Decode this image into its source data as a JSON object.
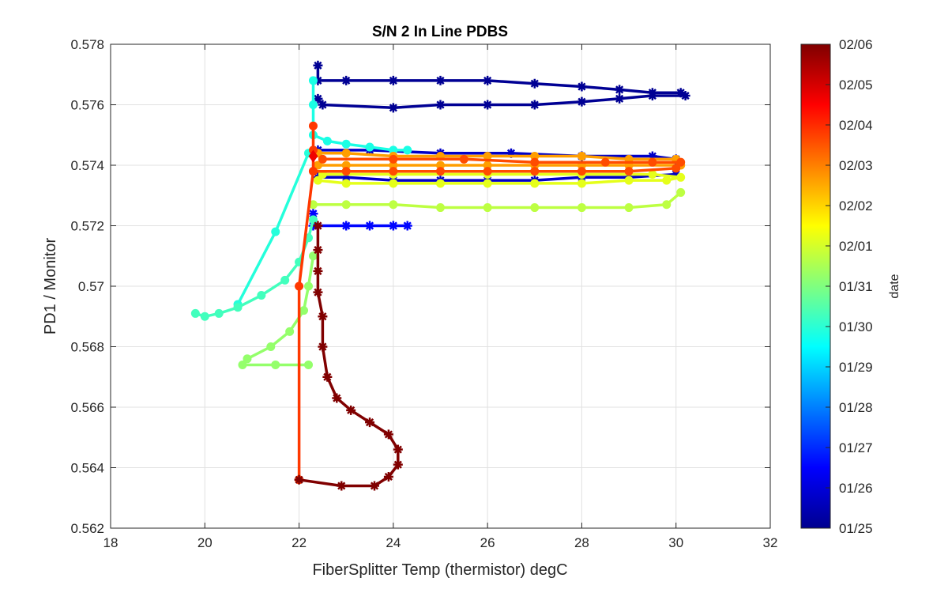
{
  "chart_data": {
    "type": "scatter",
    "title": "S/N 2 In Line PDBS",
    "xlabel": "FiberSplitter Temp (thermistor) degC",
    "ylabel": "PD1 / Monitor",
    "xlim": [
      18,
      32
    ],
    "ylim": [
      0.562,
      0.578
    ],
    "xticks": [
      "18",
      "20",
      "22",
      "24",
      "26",
      "28",
      "30",
      "32"
    ],
    "yticks": [
      "0.562",
      "0.564",
      "0.566",
      "0.568",
      "0.57",
      "0.572",
      "0.574",
      "0.576",
      "0.578"
    ],
    "grid": true,
    "colorbar": {
      "label": "date",
      "colormap": "jet",
      "ticks": [
        "01/25",
        "01/26",
        "01/27",
        "01/28",
        "01/29",
        "01/30",
        "01/31",
        "02/01",
        "02/02",
        "02/03",
        "02/04",
        "02/05",
        "02/06"
      ]
    },
    "series": [
      {
        "date_pos": 0.02,
        "marker": "star",
        "points": [
          [
            22.4,
            0.5773
          ],
          [
            22.4,
            0.5768
          ],
          [
            23.0,
            0.5768
          ],
          [
            24.0,
            0.5768
          ],
          [
            25.0,
            0.5768
          ],
          [
            26.0,
            0.5768
          ],
          [
            27.0,
            0.5767
          ],
          [
            28.0,
            0.5766
          ],
          [
            28.8,
            0.5765
          ],
          [
            29.5,
            0.5764
          ],
          [
            30.1,
            0.5764
          ],
          [
            30.2,
            0.5763
          ],
          [
            29.5,
            0.5763
          ],
          [
            28.8,
            0.5762
          ],
          [
            28.0,
            0.5761
          ],
          [
            27.0,
            0.576
          ],
          [
            26.0,
            0.576
          ],
          [
            25.0,
            0.576
          ],
          [
            24.0,
            0.5759
          ],
          [
            22.5,
            0.576
          ],
          [
            22.4,
            0.5762
          ]
        ]
      },
      {
        "date_pos": 0.07,
        "marker": "star",
        "points": [
          [
            22.4,
            0.5745
          ],
          [
            23.5,
            0.5745
          ],
          [
            25.0,
            0.5744
          ],
          [
            26.5,
            0.5744
          ],
          [
            28.0,
            0.5743
          ],
          [
            29.5,
            0.5743
          ],
          [
            30.0,
            0.5742
          ],
          [
            30.0,
            0.5737
          ],
          [
            29.0,
            0.5736
          ],
          [
            28.0,
            0.5736
          ],
          [
            27.0,
            0.5735
          ],
          [
            26.0,
            0.5735
          ],
          [
            25.0,
            0.5735
          ],
          [
            24.0,
            0.5735
          ],
          [
            23.0,
            0.5736
          ],
          [
            22.4,
            0.5736
          ]
        ]
      },
      {
        "date_pos": 0.13,
        "marker": "star",
        "points": [
          [
            22.3,
            0.5724
          ],
          [
            22.3,
            0.572
          ],
          [
            23.0,
            0.572
          ],
          [
            23.5,
            0.572
          ],
          [
            24.0,
            0.572
          ],
          [
            24.3,
            0.572
          ]
        ]
      },
      {
        "date_pos": 0.4,
        "marker": "circle",
        "points": [
          [
            22.3,
            0.5768
          ],
          [
            22.3,
            0.576
          ],
          [
            22.3,
            0.575
          ],
          [
            22.6,
            0.5748
          ],
          [
            23.0,
            0.5747
          ],
          [
            23.5,
            0.5746
          ],
          [
            24.0,
            0.5745
          ],
          [
            24.3,
            0.5745
          ]
        ]
      },
      {
        "date_pos": 0.41,
        "marker": "circle",
        "points": [
          [
            22.2,
            0.5744
          ],
          [
            21.5,
            0.5718
          ],
          [
            20.7,
            0.5694
          ]
        ]
      },
      {
        "date_pos": 0.44,
        "marker": "circle",
        "points": [
          [
            19.8,
            0.5691
          ],
          [
            20.0,
            0.569
          ],
          [
            20.3,
            0.5691
          ],
          [
            20.7,
            0.5693
          ],
          [
            21.2,
            0.5697
          ],
          [
            21.7,
            0.5702
          ],
          [
            22.0,
            0.5708
          ],
          [
            22.2,
            0.5716
          ],
          [
            22.3,
            0.5722
          ]
        ]
      },
      {
        "date_pos": 0.52,
        "marker": "circle",
        "points": [
          [
            22.2,
            0.5674
          ],
          [
            21.5,
            0.5674
          ],
          [
            20.8,
            0.5674
          ],
          [
            20.9,
            0.5676
          ],
          [
            21.4,
            0.568
          ],
          [
            21.8,
            0.5685
          ],
          [
            22.1,
            0.5692
          ],
          [
            22.2,
            0.57
          ],
          [
            22.3,
            0.571
          ]
        ]
      },
      {
        "date_pos": 0.56,
        "marker": "circle",
        "points": [
          [
            22.3,
            0.5727
          ],
          [
            23.0,
            0.5727
          ],
          [
            24.0,
            0.5727
          ],
          [
            25.0,
            0.5726
          ],
          [
            26.0,
            0.5726
          ],
          [
            27.0,
            0.5726
          ],
          [
            28.0,
            0.5726
          ],
          [
            29.0,
            0.5726
          ],
          [
            29.8,
            0.5727
          ],
          [
            30.1,
            0.5731
          ]
        ]
      },
      {
        "date_pos": 0.6,
        "marker": "circle",
        "points": [
          [
            22.4,
            0.5735
          ],
          [
            23.0,
            0.5734
          ],
          [
            24.0,
            0.5734
          ],
          [
            25.0,
            0.5734
          ],
          [
            26.0,
            0.5734
          ],
          [
            27.0,
            0.5734
          ],
          [
            28.0,
            0.5734
          ],
          [
            29.0,
            0.5735
          ],
          [
            29.8,
            0.5735
          ],
          [
            30.1,
            0.5736
          ],
          [
            29.5,
            0.5737
          ],
          [
            28.0,
            0.5737
          ],
          [
            26.0,
            0.5737
          ],
          [
            24.0,
            0.5737
          ],
          [
            22.5,
            0.5737
          ]
        ]
      },
      {
        "date_pos": 0.72,
        "marker": "circle",
        "points": [
          [
            22.4,
            0.5744
          ],
          [
            23.0,
            0.5744
          ],
          [
            24.0,
            0.5743
          ],
          [
            25.0,
            0.5743
          ],
          [
            26.0,
            0.5743
          ],
          [
            27.0,
            0.5743
          ],
          [
            28.0,
            0.5743
          ],
          [
            29.0,
            0.5742
          ],
          [
            30.0,
            0.5742
          ],
          [
            30.1,
            0.574
          ],
          [
            29.0,
            0.574
          ],
          [
            28.0,
            0.574
          ],
          [
            27.0,
            0.574
          ],
          [
            26.0,
            0.574
          ],
          [
            25.0,
            0.574
          ],
          [
            24.0,
            0.574
          ],
          [
            23.0,
            0.574
          ],
          [
            22.4,
            0.574
          ]
        ]
      },
      {
        "date_pos": 0.8,
        "marker": "circle",
        "points": [
          [
            22.3,
            0.5738
          ],
          [
            23.0,
            0.5738
          ],
          [
            24.0,
            0.5738
          ],
          [
            25.0,
            0.5738
          ],
          [
            26.0,
            0.5738
          ],
          [
            27.0,
            0.5738
          ],
          [
            28.0,
            0.5738
          ],
          [
            29.0,
            0.5738
          ],
          [
            30.0,
            0.5739
          ],
          [
            30.1,
            0.5741
          ],
          [
            29.5,
            0.5741
          ],
          [
            28.5,
            0.5741
          ],
          [
            27.0,
            0.5741
          ],
          [
            25.5,
            0.5742
          ],
          [
            24.0,
            0.5742
          ],
          [
            22.5,
            0.5742
          ]
        ]
      },
      {
        "date_pos": 0.82,
        "marker": "circle",
        "points": [
          [
            22.3,
            0.5753
          ],
          [
            22.3,
            0.5745
          ],
          [
            22.3,
            0.5738
          ],
          [
            22.0,
            0.57
          ],
          [
            22.0,
            0.5636
          ]
        ]
      },
      {
        "date_pos": 0.89,
        "marker": "diamond",
        "points": [
          [
            22.3,
            0.5743
          ]
        ]
      },
      {
        "date_pos": 1.0,
        "marker": "star",
        "points": [
          [
            22.4,
            0.572
          ],
          [
            22.4,
            0.5712
          ],
          [
            22.4,
            0.5705
          ],
          [
            22.4,
            0.5698
          ],
          [
            22.5,
            0.569
          ],
          [
            22.5,
            0.568
          ],
          [
            22.6,
            0.567
          ],
          [
            22.8,
            0.5663
          ],
          [
            23.1,
            0.5659
          ],
          [
            23.5,
            0.5655
          ],
          [
            23.9,
            0.5651
          ],
          [
            24.1,
            0.5646
          ],
          [
            24.1,
            0.5641
          ],
          [
            23.9,
            0.5637
          ],
          [
            23.6,
            0.5634
          ],
          [
            22.9,
            0.5634
          ],
          [
            22.0,
            0.5636
          ]
        ]
      }
    ]
  }
}
